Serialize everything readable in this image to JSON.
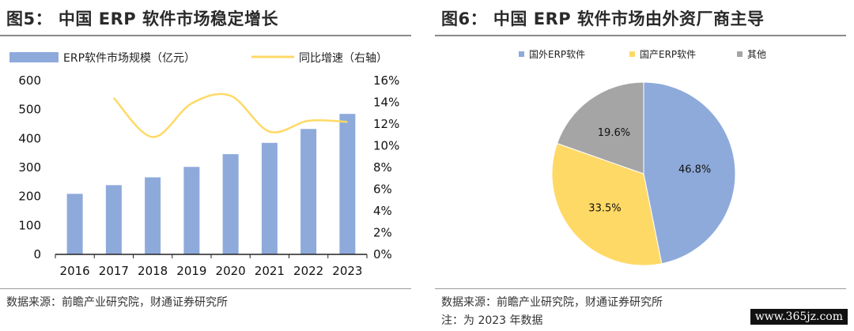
{
  "left_panel": {
    "title": "图5：  中国 ERP 软件市场稳定增长",
    "source": "数据来源：前瞻产业研究院，财通证券研究所"
  },
  "right_panel": {
    "title": "图6：  中国 ERP 软件市场由外资厂商主导",
    "source": "数据来源：前瞻产业研究院，财通证券研究所",
    "note": "注：为 2023 年数据"
  },
  "watermark": "www.365jz.com",
  "chart_data": [
    {
      "type": "bar",
      "categories": [
        "2016",
        "2017",
        "2018",
        "2019",
        "2020",
        "2021",
        "2022",
        "2023"
      ],
      "series": [
        {
          "name": "ERP软件市场规模（亿元）",
          "type": "bar",
          "axis": "left",
          "values": [
            209,
            239,
            266,
            302,
            346,
            385,
            433,
            485
          ],
          "color": "#8eaadb"
        },
        {
          "name": "同比增速（右轴）",
          "type": "line",
          "axis": "right",
          "values": [
            null,
            14.4,
            10.8,
            13.9,
            14.6,
            11.3,
            12.3,
            12.2
          ],
          "color": "#ffd966"
        }
      ],
      "ylim": [
        0,
        600
      ],
      "yticks": [
        "0",
        "100",
        "200",
        "300",
        "400",
        "500",
        "600"
      ],
      "y2lim": [
        0,
        16
      ],
      "y2ticks": [
        "0%",
        "2%",
        "4%",
        "6%",
        "8%",
        "10%",
        "12%",
        "14%",
        "16%"
      ],
      "legend_position": "top",
      "grid": false
    },
    {
      "type": "pie",
      "labels": [
        "国外ERP软件",
        "国产ERP软件",
        "其他"
      ],
      "values": [
        46.8,
        33.5,
        19.6
      ],
      "value_labels": [
        "46.8%",
        "33.5%",
        "19.6%"
      ],
      "colors": [
        "#8eaadb",
        "#ffd966",
        "#a5a5a5"
      ],
      "legend_position": "top"
    }
  ]
}
